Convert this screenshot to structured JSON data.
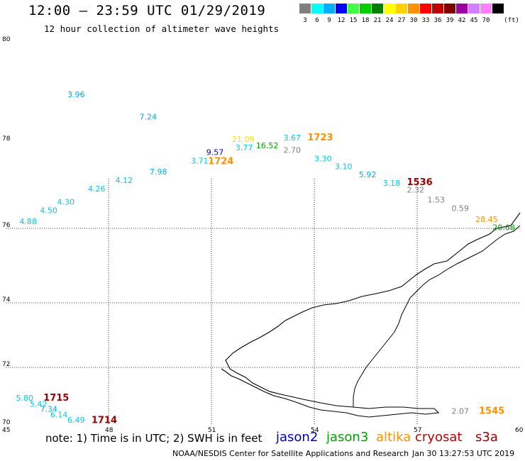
{
  "header": {
    "title": "12:00 — 23:59 UTC 01/29/2019",
    "subtitle": "12 hour collection of altimeter wave heights"
  },
  "legend": {
    "unit": "(ft)",
    "bins": [
      {
        "label": "3",
        "color": "#7f7f7f"
      },
      {
        "label": "6",
        "color": "#00ffff"
      },
      {
        "label": "9",
        "color": "#00b0ff"
      },
      {
        "label": "12",
        "color": "#0000ff"
      },
      {
        "label": "15",
        "color": "#40ff40"
      },
      {
        "label": "18",
        "color": "#00d000"
      },
      {
        "label": "21",
        "color": "#008000"
      },
      {
        "label": "24",
        "color": "#ffff00"
      },
      {
        "label": "27",
        "color": "#ffd000"
      },
      {
        "label": "30",
        "color": "#ff9000"
      },
      {
        "label": "33",
        "color": "#ff0000"
      },
      {
        "label": "36",
        "color": "#c00000"
      },
      {
        "label": "39",
        "color": "#800000"
      },
      {
        "label": "42",
        "color": "#a000a0"
      },
      {
        "label": "45",
        "color": "#d080ff"
      },
      {
        "label": "70",
        "color": "#ff80ff"
      },
      {
        "label": "",
        "color": "#000000"
      }
    ]
  },
  "map": {
    "lat_labels": [
      "80",
      "78",
      "76",
      "74",
      "72",
      "70"
    ],
    "lon_labels": [
      "45",
      "48",
      "51",
      "54",
      "57",
      "60"
    ],
    "observations": [
      {
        "text": "3.96",
        "color": "#00a8e0",
        "lon": 46.8,
        "lat": 78.9
      },
      {
        "text": "7.24",
        "color": "#00a8e0",
        "lon": 48.9,
        "lat": 78.45
      },
      {
        "text": "4.88",
        "color": "#00c8e0",
        "lon": 45.4,
        "lat": 76.1
      },
      {
        "text": "4.50",
        "color": "#00c8e0",
        "lon": 46.0,
        "lat": 76.35
      },
      {
        "text": "4.30",
        "color": "#00c8e0",
        "lon": 46.5,
        "lat": 76.55
      },
      {
        "text": "4.26",
        "color": "#00c8e0",
        "lon": 47.4,
        "lat": 76.85
      },
      {
        "text": "4.12",
        "color": "#00c8e0",
        "lon": 48.2,
        "lat": 77.05
      },
      {
        "text": "7.98",
        "color": "#00b0f0",
        "lon": 49.2,
        "lat": 77.25
      },
      {
        "text": "3.71",
        "color": "#00c8e0",
        "lon": 50.4,
        "lat": 77.5
      },
      {
        "text": "9.57",
        "color": "#0000c0",
        "lon": 50.85,
        "lat": 77.7
      },
      {
        "text": "1724",
        "color": "#ff9000",
        "lon": 50.9,
        "lat": 77.48,
        "big": true
      },
      {
        "text": "21.09",
        "color": "#ffe000",
        "lon": 51.6,
        "lat": 78.0
      },
      {
        "text": "3.77",
        "color": "#00c8e0",
        "lon": 51.7,
        "lat": 77.8
      },
      {
        "text": "16.52",
        "color": "#00a000",
        "lon": 52.3,
        "lat": 77.85
      },
      {
        "text": "3.67",
        "color": "#00c8e0",
        "lon": 53.1,
        "lat": 78.03
      },
      {
        "text": "1723",
        "color": "#ff9000",
        "lon": 53.8,
        "lat": 78.03,
        "big": true
      },
      {
        "text": "2.70",
        "color": "#808080",
        "lon": 53.1,
        "lat": 77.75
      },
      {
        "text": "3.30",
        "color": "#00c8e0",
        "lon": 54.0,
        "lat": 77.55
      },
      {
        "text": "3.10",
        "color": "#00c8e0",
        "lon": 54.6,
        "lat": 77.37
      },
      {
        "text": "5.92",
        "color": "#00b0f0",
        "lon": 55.3,
        "lat": 77.18
      },
      {
        "text": "3.18",
        "color": "#00c8e0",
        "lon": 56.0,
        "lat": 76.98
      },
      {
        "text": "1536",
        "color": "#a00000",
        "lon": 56.7,
        "lat": 77.0,
        "big": true
      },
      {
        "text": "2.32",
        "color": "#808080",
        "lon": 56.7,
        "lat": 76.83
      },
      {
        "text": "1.53",
        "color": "#808080",
        "lon": 57.3,
        "lat": 76.6
      },
      {
        "text": "0.59",
        "color": "#808080",
        "lon": 58.0,
        "lat": 76.4
      },
      {
        "text": "28.45",
        "color": "#ff9000",
        "lon": 58.7,
        "lat": 76.15
      },
      {
        "text": "20.68",
        "color": "#00a000",
        "lon": 59.2,
        "lat": 75.95
      },
      {
        "text": "5.80",
        "color": "#00c8e0",
        "lon": 45.3,
        "lat": 70.85
      },
      {
        "text": "1715",
        "color": "#a00000",
        "lon": 46.1,
        "lat": 70.85,
        "big": true
      },
      {
        "text": "5.42",
        "color": "#00c8e0",
        "lon": 45.7,
        "lat": 70.65
      },
      {
        "text": "7.34",
        "color": "#00b0f0",
        "lon": 46.0,
        "lat": 70.47
      },
      {
        "text": "6.14",
        "color": "#00c8e0",
        "lon": 46.3,
        "lat": 70.28
      },
      {
        "text": "6.49",
        "color": "#00c8e0",
        "lon": 46.8,
        "lat": 70.1
      },
      {
        "text": "1714",
        "color": "#a00000",
        "lon": 47.5,
        "lat": 70.08,
        "big": true
      },
      {
        "text": "2.07",
        "color": "#808080",
        "lon": 58.0,
        "lat": 70.4
      },
      {
        "text": "1545",
        "color": "#ff9000",
        "lon": 58.8,
        "lat": 70.4,
        "big": true
      }
    ]
  },
  "footer": {
    "note": "note: 1) Time is in UTC; 2) SWH is in feet",
    "satellites": [
      {
        "name": "jason2",
        "color": "#0000c0"
      },
      {
        "name": "jason3",
        "color": "#00a000"
      },
      {
        "name": "altika",
        "color": "#ff9000"
      },
      {
        "name": "cryosat",
        "color": "#c00000"
      },
      {
        "name": "s3a",
        "color": "#a00000"
      }
    ],
    "credit": "NOAA/NESDIS Center for Satellite Applications and Research",
    "timestamp": "Jan 30 13:27:53 UTC 2019"
  }
}
